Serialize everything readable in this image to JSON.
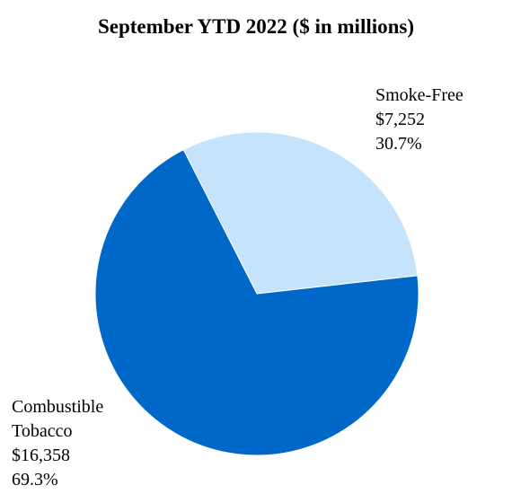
{
  "chart_data": {
    "type": "pie",
    "title": "September YTD 2022 ($ in millions)",
    "slices": [
      {
        "name": "Smoke-Free",
        "name_lines": [
          "Smoke-Free"
        ],
        "value_label": "$7,252",
        "percent_label": "30.7%",
        "value": 7252,
        "percent": 30.7,
        "color": "#c5e4fb"
      },
      {
        "name": "Combustible Tobacco",
        "name_lines": [
          "Combustible",
          "Tobacco"
        ],
        "value_label": "$16,358",
        "percent_label": "69.3%",
        "value": 16358,
        "percent": 69.3,
        "color": "#0068c9"
      }
    ]
  }
}
